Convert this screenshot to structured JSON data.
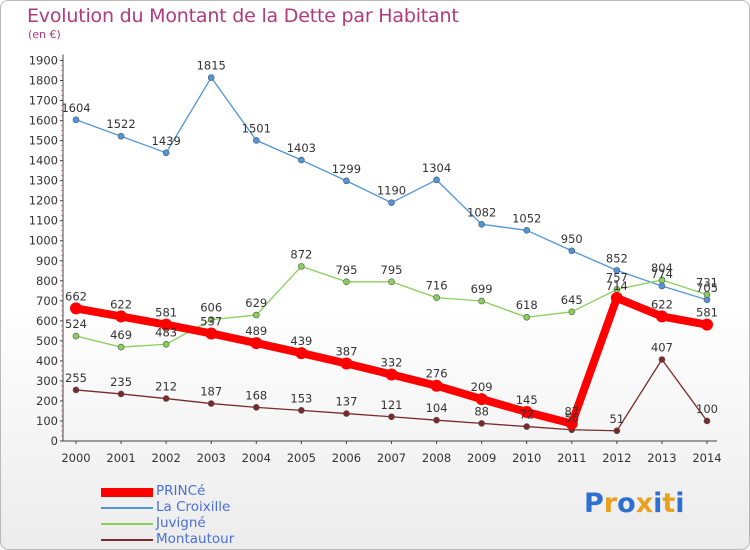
{
  "header": {
    "title": "Evolution du Montant de la Dette par Habitant",
    "subtitle": "(en €)"
  },
  "chart_data": {
    "type": "line",
    "title": "Evolution du Montant de la Dette par Habitant",
    "subtitle": "(en €)",
    "xlabel": "",
    "ylabel": "",
    "ylim": [
      0,
      1900
    ],
    "ytick_step": 100,
    "grid": false,
    "legend_position": "bottom-left",
    "categories": [
      "2000",
      "2001",
      "2002",
      "2003",
      "2004",
      "2005",
      "2006",
      "2007",
      "2008",
      "2009",
      "2010",
      "2011",
      "2012",
      "2013",
      "2014"
    ],
    "series": [
      {
        "name": "PRINCé",
        "color": "#ff0000",
        "values": [
          662,
          622,
          581,
          537,
          489,
          439,
          387,
          332,
          276,
          209,
          145,
          87,
          714,
          622,
          581
        ],
        "labels": [
          "662",
          "622",
          "581",
          "537",
          "489",
          "439",
          "387",
          "332",
          "276",
          "209",
          "145",
          "87",
          "714",
          "622",
          "581"
        ]
      },
      {
        "name": "La Croixille",
        "color": "#4f95d8",
        "values": [
          1604,
          1522,
          1439,
          1815,
          1501,
          1403,
          1299,
          1190,
          1304,
          1082,
          1052,
          950,
          852,
          774,
          705
        ],
        "labels": [
          "1604",
          "1522",
          "1439",
          "1815",
          "1501",
          "1403",
          "1299",
          "1190",
          "1304",
          "1082",
          "1052",
          "950",
          "852",
          "774",
          "705"
        ]
      },
      {
        "name": "Juvigné",
        "color": "#88d05a",
        "values": [
          524,
          469,
          483,
          606,
          629,
          872,
          795,
          795,
          716,
          699,
          618,
          645,
          757,
          804,
          731
        ],
        "labels": [
          "524",
          "469",
          "483",
          "606",
          "629",
          "872",
          "795",
          "795",
          "716",
          "699",
          "618",
          "645",
          "757",
          "804",
          "731"
        ]
      },
      {
        "name": "Montautour",
        "color": "#7a2a2a",
        "values": [
          255,
          235,
          212,
          187,
          168,
          153,
          137,
          121,
          104,
          88,
          72,
          56,
          51,
          407,
          100
        ],
        "labels": [
          "255",
          "235",
          "212",
          "187",
          "168",
          "153",
          "137",
          "121",
          "104",
          "88",
          "72",
          "56",
          "51",
          "407",
          "100"
        ]
      }
    ]
  },
  "logo": {
    "letters": [
      "P",
      "r",
      "o",
      "x",
      "i",
      "t",
      "i"
    ],
    "colors": [
      "#2e6fd0",
      "#e8a020",
      "#2e6fd0",
      "#e8a020",
      "#2e6fd0",
      "#e8a020",
      "#2e6fd0"
    ]
  }
}
